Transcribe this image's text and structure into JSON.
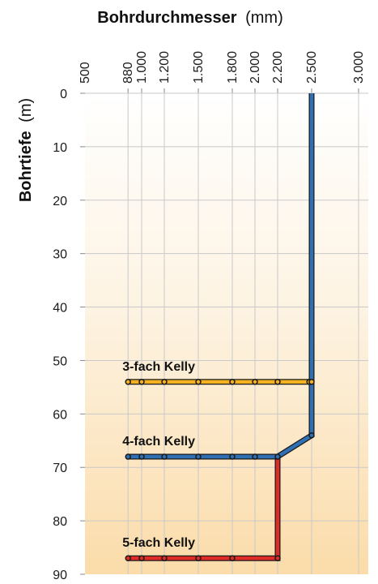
{
  "chart_data": {
    "type": "line",
    "x_title_bold": "Bohrdurchmesser",
    "x_title_unit": "(mm)",
    "y_title_bold": "Bohrtiefe",
    "y_title_unit": "(m)",
    "x_ticks": [
      500,
      880,
      1000,
      1200,
      1500,
      1800,
      2000,
      2200,
      2500,
      3000
    ],
    "x_tick_labels": [
      "500",
      "880",
      "1.000",
      "1.200",
      "1.500",
      "1.800",
      "2.000",
      "2.200",
      "2.500",
      "3.000"
    ],
    "y_ticks": [
      0,
      10,
      20,
      30,
      40,
      50,
      60,
      70,
      80,
      90
    ],
    "y_tick_labels": [
      "0",
      "10",
      "20",
      "30",
      "40",
      "50",
      "60",
      "70",
      "80",
      "90"
    ],
    "xlim": [
      500,
      3000
    ],
    "ylim": [
      0,
      90
    ],
    "y_inverted": true,
    "grid": true,
    "series": [
      {
        "name": "3-fach Kelly",
        "color": "#f4b120",
        "x": [
          880,
          1000,
          1200,
          1500,
          1800,
          2000,
          2200,
          2480,
          2500,
          2500
        ],
        "y": [
          54,
          54,
          54,
          54,
          54,
          54,
          54,
          54,
          54,
          0
        ],
        "markers_x": [
          880,
          1000,
          1200,
          1500,
          1800,
          2000,
          2200,
          2480,
          2500
        ]
      },
      {
        "name": "4-fach Kelly",
        "color": "#2f6fb4",
        "x": [
          880,
          1000,
          1200,
          1500,
          1800,
          2000,
          2200,
          2500,
          2500
        ],
        "y": [
          68,
          68,
          68,
          68,
          68,
          68,
          68,
          64,
          0
        ],
        "markers_x": [
          880,
          1000,
          1200,
          1500,
          1800,
          2000,
          2200
        ],
        "markers_y": [
          68,
          68,
          68,
          68,
          68,
          68,
          68
        ],
        "extra_markers": [
          {
            "x": 2500,
            "y": 64
          }
        ]
      },
      {
        "name": "5-fach Kelly",
        "color": "#e02a25",
        "x": [
          880,
          1000,
          1200,
          1500,
          1800,
          2200,
          2200,
          2200
        ],
        "y": [
          87,
          87,
          87,
          87,
          87,
          87,
          68,
          68
        ],
        "markers_x": [
          880,
          1000,
          1200,
          1500,
          1800,
          2200
        ]
      }
    ]
  }
}
